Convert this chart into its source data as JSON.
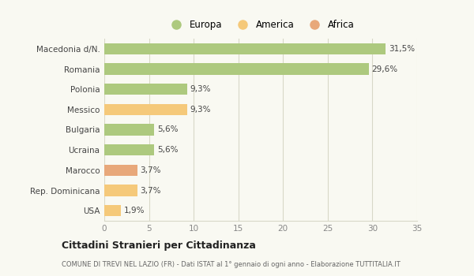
{
  "categories": [
    "Macedonia d/N.",
    "Romania",
    "Polonia",
    "Messico",
    "Bulgaria",
    "Ucraina",
    "Marocco",
    "Rep. Dominicana",
    "USA"
  ],
  "values": [
    31.5,
    29.6,
    9.3,
    9.3,
    5.6,
    5.6,
    3.7,
    3.7,
    1.9
  ],
  "labels": [
    "31,5%",
    "29,6%",
    "9,3%",
    "9,3%",
    "5,6%",
    "5,6%",
    "3,7%",
    "3,7%",
    "1,9%"
  ],
  "colors": [
    "#adc97e",
    "#adc97e",
    "#adc97e",
    "#f5c97a",
    "#adc97e",
    "#adc97e",
    "#e8a87a",
    "#f5c97a",
    "#f5c97a"
  ],
  "legend": [
    {
      "label": "Europa",
      "color": "#adc97e"
    },
    {
      "label": "America",
      "color": "#f5c97a"
    },
    {
      "label": "Africa",
      "color": "#e8a87a"
    }
  ],
  "xlim": [
    0,
    35
  ],
  "xticks": [
    0,
    5,
    10,
    15,
    20,
    25,
    30,
    35
  ],
  "title": "Cittadini Stranieri per Cittadinanza",
  "subtitle": "COMUNE DI TREVI NEL LAZIO (FR) - Dati ISTAT al 1° gennaio di ogni anno - Elaborazione TUTTITALIA.IT",
  "background_color": "#f9f9f2",
  "grid_color": "#d8d8c8",
  "bar_height": 0.55,
  "label_fontsize": 7.5,
  "ytick_fontsize": 7.5
}
